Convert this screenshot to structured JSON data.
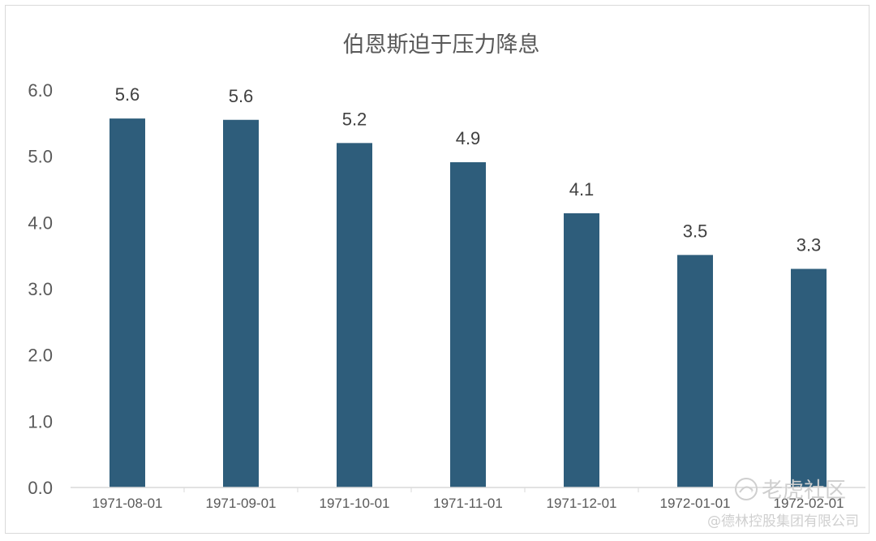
{
  "chart_data": {
    "type": "bar",
    "title": "伯恩斯迫于压力降息",
    "categories": [
      "1971-08-01",
      "1971-09-01",
      "1971-10-01",
      "1971-11-01",
      "1971-12-01",
      "1972-01-01",
      "1972-02-01"
    ],
    "values": [
      5.57,
      5.55,
      5.2,
      4.91,
      4.14,
      3.51,
      3.3
    ],
    "data_labels": [
      "5.6",
      "5.6",
      "5.2",
      "4.9",
      "4.1",
      "3.5",
      "3.3"
    ],
    "y_ticks": [
      "0.0",
      "1.0",
      "2.0",
      "3.0",
      "4.0",
      "5.0",
      "6.0"
    ],
    "xlabel": "",
    "ylabel": "",
    "ylim": [
      0,
      6
    ],
    "grid": false,
    "legend": "none",
    "bar_color": "#2e5d7b",
    "axis_color": "#d9d9d9"
  },
  "watermark": {
    "main": "老虎社区",
    "sub": "@德林控股集团有限公司",
    "color": "#cfcfcf"
  }
}
